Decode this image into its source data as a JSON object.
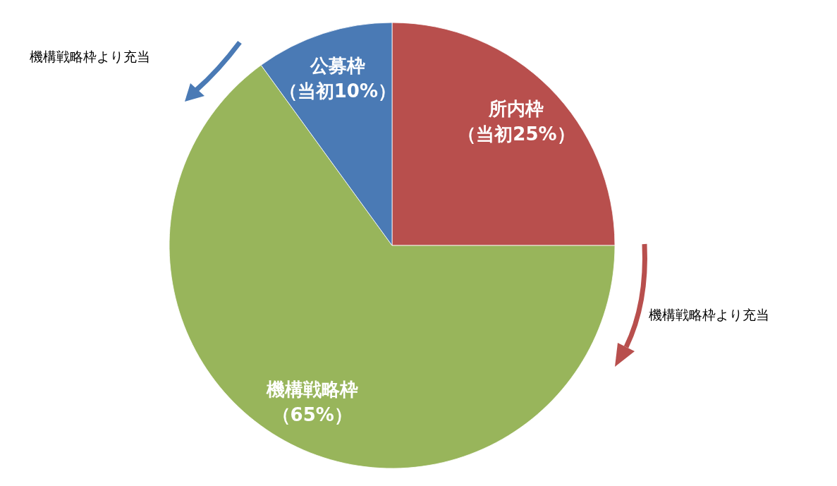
{
  "chart_data": {
    "type": "pie",
    "categories": [
      "所内枠",
      "機構戦略枠",
      "公募枠"
    ],
    "values": [
      25,
      65,
      10
    ],
    "value_labels": [
      "（当初25%）",
      "（65%）",
      "（当初10%）"
    ],
    "colors": [
      "#b84f4d",
      "#98b55b",
      "#4a7ab5"
    ],
    "legend": false,
    "annotations": [
      "機構戦略枠より充当",
      "機構戦略枠より充当"
    ]
  }
}
